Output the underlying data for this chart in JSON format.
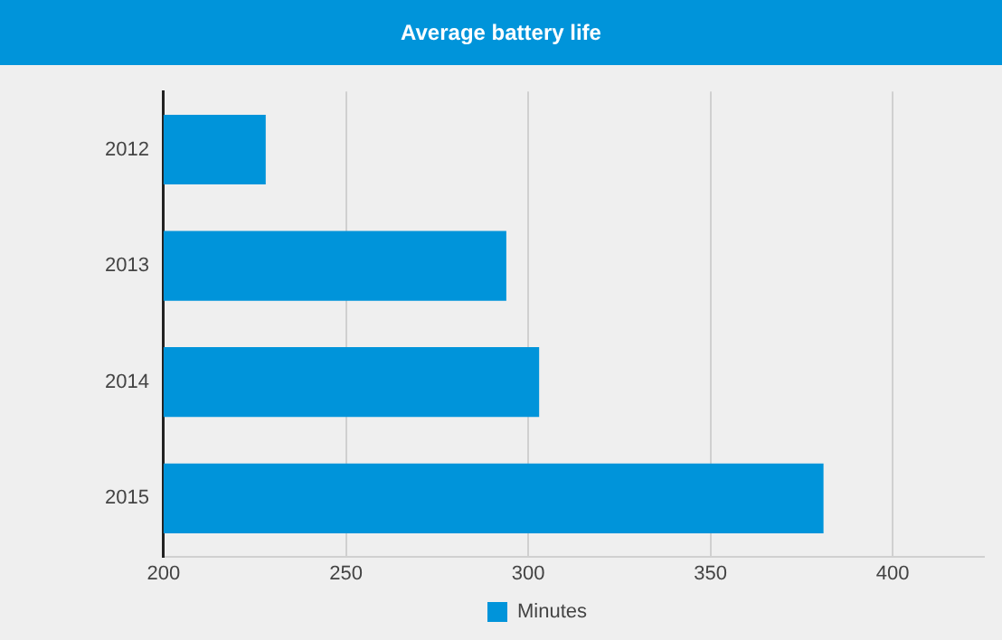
{
  "chart_data": {
    "type": "bar",
    "orientation": "horizontal",
    "title": "Average battery life",
    "categories": [
      "2012",
      "2013",
      "2014",
      "2015"
    ],
    "series": [
      {
        "name": "Minutes",
        "color": "#0094da",
        "values": [
          228,
          294,
          303,
          381
        ]
      }
    ],
    "xlim": [
      200,
      425
    ],
    "xticks": [
      200,
      250,
      300,
      350,
      400
    ],
    "grid": "x",
    "legend": "bottom"
  }
}
